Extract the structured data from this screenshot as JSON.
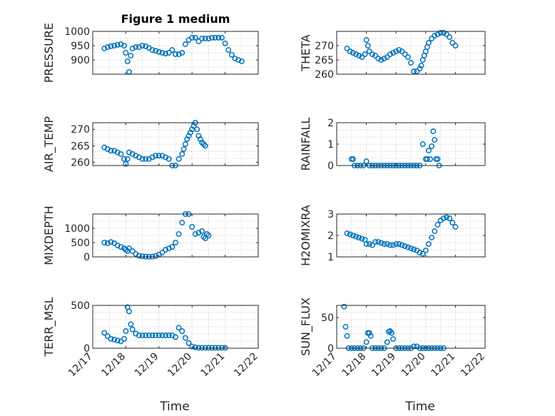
{
  "figure": {
    "title": "Figure 1 medium",
    "marker_color": "#0072bd",
    "xlabel": "Time",
    "xticks": [
      "12/17",
      "12/18",
      "12/19",
      "12/20",
      "12/21",
      "12/22"
    ]
  },
  "chart_data": [
    {
      "type": "scatter",
      "title": "Figure 1 medium",
      "ylabel": "PRESSURE",
      "ylim": [
        850,
        1000
      ],
      "yticks": [
        900,
        950,
        1000
      ],
      "xlim": [
        0,
        5
      ],
      "x": [
        0.35,
        0.45,
        0.55,
        0.65,
        0.75,
        0.85,
        0.95,
        1.0,
        1.05,
        1.1,
        1.15,
        1.2,
        1.3,
        1.4,
        1.5,
        1.6,
        1.7,
        1.8,
        1.9,
        2.0,
        2.1,
        2.2,
        2.3,
        2.4,
        2.5,
        2.6,
        2.7,
        2.8,
        2.9,
        3.0,
        3.1,
        3.2,
        3.3,
        3.4,
        3.5,
        3.6,
        3.7,
        3.8,
        3.9,
        4.0,
        4.1,
        4.2,
        4.3,
        4.4,
        4.5
      ],
      "y": [
        940,
        945,
        948,
        950,
        953,
        955,
        950,
        925,
        895,
        858,
        915,
        940,
        945,
        945,
        950,
        948,
        942,
        935,
        932,
        928,
        925,
        922,
        925,
        935,
        920,
        920,
        925,
        955,
        970,
        978,
        978,
        965,
        975,
        975,
        975,
        978,
        978,
        978,
        978,
        958,
        935,
        918,
        905,
        900,
        895
      ],
      "xlabel": ""
    },
    {
      "type": "scatter",
      "ylabel": "THETA",
      "ylim": [
        260,
        275
      ],
      "yticks": [
        260,
        265,
        270
      ],
      "xlim": [
        0,
        5
      ],
      "x": [
        0.35,
        0.45,
        0.55,
        0.65,
        0.75,
        0.85,
        0.95,
        1.0,
        1.05,
        1.1,
        1.2,
        1.3,
        1.4,
        1.5,
        1.6,
        1.7,
        1.8,
        1.9,
        2.0,
        2.1,
        2.2,
        2.3,
        2.4,
        2.5,
        2.6,
        2.7,
        2.8,
        2.85,
        2.9,
        2.95,
        3.0,
        3.05,
        3.1,
        3.2,
        3.3,
        3.4,
        3.5,
        3.6,
        3.7,
        3.8,
        3.9,
        4.0
      ],
      "y": [
        269,
        268,
        267.5,
        267,
        266.5,
        266,
        267,
        272,
        270,
        268,
        267,
        266.5,
        265.5,
        265,
        265.5,
        266,
        267,
        267.5,
        268,
        268.5,
        268,
        267,
        266,
        264,
        261,
        261,
        262,
        263,
        265,
        266.5,
        268,
        269.5,
        271,
        272.5,
        273.5,
        274,
        274.5,
        274.5,
        274,
        273,
        271,
        270
      ],
      "xlabel": ""
    },
    {
      "type": "scatter",
      "ylabel": "AIR_TEMP",
      "ylim": [
        259,
        272
      ],
      "yticks": [
        260,
        265,
        270
      ],
      "xlim": [
        0,
        5
      ],
      "x": [
        0.35,
        0.45,
        0.55,
        0.65,
        0.75,
        0.85,
        0.95,
        1.0,
        1.05,
        1.1,
        1.2,
        1.3,
        1.4,
        1.5,
        1.6,
        1.7,
        1.8,
        1.9,
        2.0,
        2.1,
        2.2,
        2.3,
        2.4,
        2.5,
        2.6,
        2.7,
        2.75,
        2.8,
        2.85,
        2.9,
        2.95,
        3.0,
        3.05,
        3.1,
        3.15,
        3.2,
        3.25,
        3.3,
        3.35,
        3.4
      ],
      "y": [
        264.5,
        264,
        263.5,
        263.5,
        263,
        262.5,
        261,
        259.5,
        261,
        263,
        262.5,
        262,
        261.5,
        261,
        261,
        261,
        261.5,
        262,
        262,
        262,
        261.5,
        261,
        259,
        259,
        261,
        262.5,
        264,
        265.5,
        267,
        268,
        269,
        270,
        271,
        272,
        270,
        268,
        267,
        266,
        265.5,
        265
      ],
      "xlabel": ""
    },
    {
      "type": "scatter",
      "ylabel": "RAINFALL",
      "ylim": [
        0,
        2
      ],
      "yticks": [
        0,
        1,
        2
      ],
      "xlim": [
        0,
        5
      ],
      "x": [
        0.5,
        0.55,
        0.6,
        0.7,
        0.8,
        0.9,
        1.0,
        1.1,
        1.2,
        1.3,
        1.4,
        1.5,
        1.6,
        1.7,
        1.8,
        1.9,
        2.0,
        2.1,
        2.2,
        2.3,
        2.4,
        2.5,
        2.6,
        2.7,
        2.8,
        2.9,
        3.0,
        3.05,
        3.1,
        3.15,
        3.2,
        3.25,
        3.3,
        3.35,
        3.4,
        3.45
      ],
      "y": [
        0.3,
        0.3,
        0,
        0,
        0,
        0,
        0.2,
        0,
        0,
        0,
        0,
        0,
        0,
        0,
        0,
        0,
        0,
        0,
        0,
        0,
        0,
        0,
        0,
        0,
        0,
        1.0,
        0.3,
        0.3,
        0.7,
        0.3,
        0.9,
        1.6,
        1.2,
        0.3,
        0.3,
        0
      ],
      "xlabel": ""
    },
    {
      "type": "scatter",
      "ylabel": "MIXDEPTH",
      "ylim": [
        0,
        1500
      ],
      "yticks": [
        0,
        500,
        1000
      ],
      "xlim": [
        0,
        5
      ],
      "x": [
        0.35,
        0.45,
        0.55,
        0.65,
        0.75,
        0.85,
        0.95,
        1.0,
        1.05,
        1.1,
        1.2,
        1.3,
        1.4,
        1.5,
        1.6,
        1.7,
        1.8,
        1.9,
        2.0,
        2.1,
        2.2,
        2.3,
        2.4,
        2.5,
        2.6,
        2.7,
        2.8,
        2.9,
        3.0,
        3.1,
        3.2,
        3.3,
        3.35,
        3.4,
        3.45,
        3.5
      ],
      "y": [
        500,
        480,
        520,
        480,
        400,
        350,
        300,
        250,
        200,
        300,
        200,
        100,
        40,
        20,
        10,
        5,
        10,
        30,
        80,
        150,
        250,
        300,
        350,
        500,
        800,
        1200,
        1500,
        1500,
        1050,
        800,
        850,
        900,
        700,
        650,
        800,
        750
      ],
      "xlabel": ""
    },
    {
      "type": "scatter",
      "ylabel": "H2OMIXRA",
      "ylim": [
        1,
        3
      ],
      "yticks": [
        1,
        2,
        3
      ],
      "xlim": [
        0,
        5
      ],
      "x": [
        0.35,
        0.45,
        0.55,
        0.65,
        0.75,
        0.85,
        0.95,
        1.0,
        1.1,
        1.2,
        1.3,
        1.4,
        1.5,
        1.6,
        1.7,
        1.8,
        1.9,
        2.0,
        2.1,
        2.2,
        2.3,
        2.4,
        2.5,
        2.6,
        2.7,
        2.8,
        2.9,
        3.0,
        3.1,
        3.2,
        3.3,
        3.4,
        3.5,
        3.6,
        3.7,
        3.8,
        3.9,
        4.0
      ],
      "y": [
        2.1,
        2.05,
        2.0,
        1.95,
        1.9,
        1.85,
        1.8,
        1.6,
        1.6,
        1.55,
        1.7,
        1.7,
        1.65,
        1.6,
        1.6,
        1.55,
        1.55,
        1.6,
        1.6,
        1.55,
        1.5,
        1.45,
        1.4,
        1.35,
        1.3,
        1.2,
        1.15,
        1.3,
        1.6,
        1.9,
        2.2,
        2.5,
        2.7,
        2.8,
        2.85,
        2.8,
        2.6,
        2.4
      ],
      "xlabel": ""
    },
    {
      "type": "scatter",
      "ylabel": "TERR_MSL",
      "ylim": [
        0,
        500
      ],
      "yticks": [
        0,
        500
      ],
      "xlim": [
        0,
        5
      ],
      "x": [
        0.35,
        0.45,
        0.55,
        0.65,
        0.75,
        0.85,
        0.95,
        1.0,
        1.05,
        1.1,
        1.15,
        1.2,
        1.3,
        1.4,
        1.5,
        1.6,
        1.7,
        1.8,
        1.9,
        2.0,
        2.1,
        2.2,
        2.3,
        2.4,
        2.5,
        2.6,
        2.7,
        2.8,
        2.9,
        3.0,
        3.1,
        3.2,
        3.3,
        3.4,
        3.5,
        3.6,
        3.7,
        3.8,
        3.9,
        4.0
      ],
      "y": [
        180,
        140,
        110,
        100,
        90,
        80,
        110,
        200,
        480,
        430,
        280,
        220,
        170,
        150,
        150,
        150,
        150,
        150,
        150,
        150,
        150,
        150,
        150,
        150,
        130,
        240,
        200,
        120,
        60,
        20,
        10,
        5,
        5,
        5,
        5,
        5,
        5,
        5,
        5,
        5
      ],
      "xlabel": ""
    },
    {
      "type": "scatter",
      "ylabel": "SUN_FLUX",
      "ylim": [
        0,
        70
      ],
      "yticks": [
        0,
        50
      ],
      "xlim": [
        0,
        5
      ],
      "x": [
        0.25,
        0.3,
        0.35,
        0.4,
        0.5,
        0.6,
        0.7,
        0.8,
        0.9,
        1.0,
        1.05,
        1.1,
        1.15,
        1.2,
        1.3,
        1.4,
        1.5,
        1.6,
        1.7,
        1.75,
        1.8,
        1.85,
        1.9,
        2.0,
        2.1,
        2.2,
        2.3,
        2.4,
        2.5,
        2.6,
        2.7,
        2.8,
        2.9,
        3.0,
        3.1,
        3.2,
        3.3,
        3.4,
        3.5,
        3.6
      ],
      "y": [
        68,
        35,
        20,
        0,
        0,
        0,
        0,
        0,
        0,
        10,
        25,
        25,
        20,
        0,
        0,
        0,
        0,
        0,
        10,
        27,
        28,
        25,
        15,
        0,
        0,
        0,
        0,
        0,
        0,
        3,
        3,
        0,
        0,
        0,
        0,
        0,
        0,
        0,
        0,
        0
      ],
      "xlabel": "Time"
    }
  ]
}
